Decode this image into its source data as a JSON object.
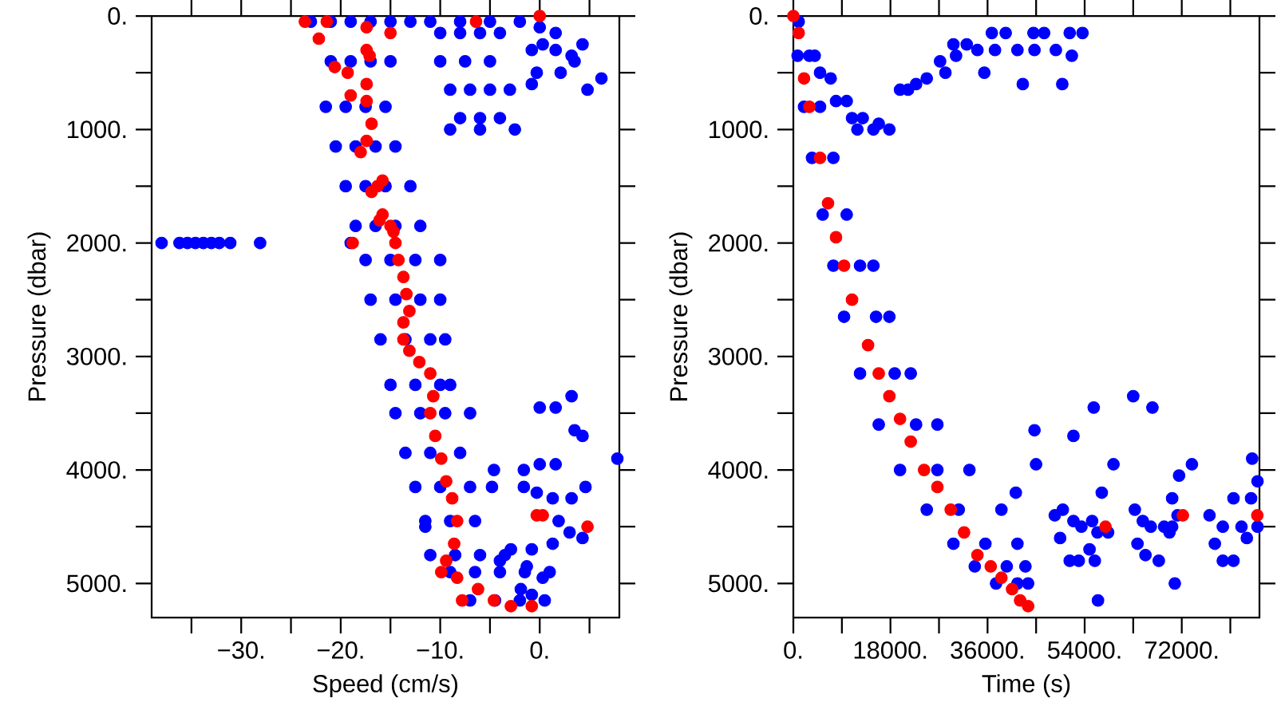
{
  "chart_data": [
    {
      "type": "scatter",
      "xlabel": "Speed (cm/s)",
      "ylabel": "Pressure (dbar)",
      "marker": "circle",
      "xlim": [
        -39,
        8
      ],
      "ylim": [
        5300,
        0
      ],
      "xticks": [
        {
          "value": -35,
          "label": null
        },
        {
          "value": -30,
          "label": "−30."
        },
        {
          "value": -25,
          "label": null
        },
        {
          "value": -20,
          "label": "−20."
        },
        {
          "value": -15,
          "label": null
        },
        {
          "value": -10,
          "label": "−10."
        },
        {
          "value": -5,
          "label": null
        },
        {
          "value": 0,
          "label": "0."
        },
        {
          "value": 5,
          "label": null
        }
      ],
      "yticks": [
        {
          "value": 0,
          "label": "0."
        },
        {
          "value": 500,
          "label": null
        },
        {
          "value": 1000,
          "label": "1000."
        },
        {
          "value": 1500,
          "label": null
        },
        {
          "value": 2000,
          "label": "2000."
        },
        {
          "value": 2500,
          "label": null
        },
        {
          "value": 3000,
          "label": "3000."
        },
        {
          "value": 3500,
          "label": null
        },
        {
          "value": 4000,
          "label": "4000."
        },
        {
          "value": 4500,
          "label": null
        },
        {
          "value": 5000,
          "label": "5000."
        }
      ],
      "series": [
        {
          "color": "#0000ff",
          "x": [
            -23,
            -21,
            -19,
            -17,
            -15,
            -21,
            -19,
            -17,
            -15,
            -21.5,
            -19.5,
            -17.5,
            -15.5,
            -20.5,
            -18.5,
            -16.5,
            -14.5,
            -19.5,
            -17.5,
            -15.5,
            -13,
            -18.5,
            -16.5,
            -14.5,
            -12,
            -17.5,
            -15,
            -12.5,
            -10,
            -17,
            -14.5,
            -12,
            -10,
            -16,
            -13.5,
            -11,
            -9.5,
            -15,
            -12.5,
            -10,
            -9,
            -14.5,
            -12,
            -9.5,
            -7,
            -13.5,
            -11,
            -8,
            -12.5,
            -10,
            -7,
            -11.5,
            -9,
            -6.5,
            -11,
            -8.5,
            -6,
            -3.5,
            -9,
            -6.5,
            -4,
            -1.5,
            1,
            -7,
            -4.5,
            -2,
            0.5,
            -10,
            -8,
            -6,
            -4,
            -10,
            -7.5,
            -5,
            -9,
            -7,
            -5,
            -3,
            -8,
            -6,
            -4,
            -9,
            -6,
            -2.5,
            -13,
            -11,
            -8,
            -5,
            -2,
            0,
            1.6,
            0.3,
            1.6,
            -0.8,
            3.2,
            4.3,
            3.5,
            2.1,
            -0.3,
            -0.8,
            6.2,
            4.8,
            -38,
            -36.2,
            -35.4,
            -34.6,
            -33.8,
            -33,
            -32.2,
            -31.1,
            -28.1,
            -19,
            0,
            1.6,
            3.2,
            3.5,
            4.3,
            7.8,
            -4.6,
            -1.6,
            0,
            1.6,
            -4.8,
            -1.6,
            4.6,
            3.2,
            1.3,
            1.9,
            3,
            4.3,
            1.3,
            -0.8,
            -2.9,
            -4,
            -1.3,
            0.3,
            -1.9,
            -0.8,
            -11.5,
            -0.3
          ],
          "values": [
            50,
            50,
            50,
            50,
            50,
            400,
            400,
            400,
            400,
            800,
            800,
            800,
            800,
            1150,
            1150,
            1150,
            1150,
            1500,
            1500,
            1500,
            1500,
            1850,
            1850,
            1850,
            1850,
            2150,
            2150,
            2150,
            2150,
            2500,
            2500,
            2500,
            2500,
            2850,
            2850,
            2850,
            2850,
            3250,
            3250,
            3250,
            3250,
            3500,
            3500,
            3500,
            3500,
            3850,
            3850,
            3850,
            4150,
            4150,
            4150,
            4450,
            4450,
            4450,
            4750,
            4750,
            4750,
            4750,
            4900,
            4900,
            4900,
            4900,
            4900,
            5150,
            5150,
            5150,
            5150,
            150,
            150,
            150,
            150,
            400,
            400,
            400,
            650,
            650,
            650,
            650,
            900,
            900,
            900,
            1000,
            1000,
            1000,
            50,
            50,
            50,
            50,
            50,
            100,
            150,
            250,
            300,
            300,
            350,
            250,
            400,
            500,
            500,
            600,
            550,
            650,
            2000,
            2000,
            2000,
            2000,
            2000,
            2000,
            2000,
            2000,
            2000,
            2000,
            3450,
            3450,
            3350,
            3650,
            3700,
            3900,
            4000,
            4000,
            3950,
            3950,
            4150,
            4150,
            4150,
            4250,
            4250,
            4450,
            4550,
            4600,
            4650,
            4700,
            4700,
            4800,
            4850,
            4950,
            5050,
            5100,
            4500,
            4200
          ]
        },
        {
          "color": "#ff0000",
          "x": [
            -23.6,
            -21.4,
            -17.4,
            -15,
            -22.2,
            -20.6,
            -17.4,
            -17.1,
            -19.3,
            -17.4,
            -19,
            -17.4,
            -16.9,
            -17.4,
            -18,
            -15.8,
            -16.3,
            -16.9,
            -15.8,
            -16.1,
            -15,
            -14.7,
            -14.5,
            -14.2,
            -13.7,
            -13.4,
            -13.1,
            -13.7,
            -13.7,
            -13.1,
            -12.1,
            -11,
            -10.7,
            -11,
            -10.5,
            -9.9,
            -9.4,
            -8.8,
            -8.3,
            -8.6,
            -9.4,
            -9.9,
            -8.3,
            -6.2,
            -4.6,
            -2.9,
            -7.8,
            -0.8,
            0.3,
            -0.3,
            4.8,
            -18.8,
            -6.4,
            0
          ],
          "values": [
            50,
            50,
            100,
            150,
            200,
            450,
            300,
            350,
            500,
            600,
            700,
            750,
            950,
            1100,
            1200,
            1450,
            1500,
            1550,
            1750,
            1800,
            1850,
            1900,
            2000,
            2150,
            2300,
            2450,
            2600,
            2700,
            2850,
            2950,
            3050,
            3150,
            3350,
            3500,
            3700,
            3900,
            4100,
            4250,
            4450,
            4650,
            4800,
            4900,
            4950,
            5050,
            5150,
            5200,
            5150,
            5200,
            4400,
            4400,
            4500,
            2000,
            50,
            0
          ]
        }
      ]
    },
    {
      "type": "scatter",
      "xlabel": "Time (s)",
      "ylabel": "Pressure (dbar)",
      "marker": "circle",
      "xlim": [
        0,
        86400
      ],
      "ylim": [
        5300,
        0
      ],
      "xticks": [
        {
          "value": 0,
          "label": "0."
        },
        {
          "value": 9000,
          "label": null
        },
        {
          "value": 18000,
          "label": "18000."
        },
        {
          "value": 27000,
          "label": null
        },
        {
          "value": 36000,
          "label": "36000."
        },
        {
          "value": 45000,
          "label": null
        },
        {
          "value": 54000,
          "label": "54000."
        },
        {
          "value": 63000,
          "label": null
        },
        {
          "value": 72000,
          "label": "72000."
        },
        {
          "value": 81000,
          "label": null
        }
      ],
      "yticks": [
        {
          "value": 0,
          "label": "0."
        },
        {
          "value": 500,
          "label": null
        },
        {
          "value": 1000,
          "label": "1000."
        },
        {
          "value": 1500,
          "label": null
        },
        {
          "value": 2000,
          "label": "2000."
        },
        {
          "value": 2500,
          "label": null
        },
        {
          "value": 3000,
          "label": "3000."
        },
        {
          "value": 3500,
          "label": null
        },
        {
          "value": 4000,
          "label": "4000."
        },
        {
          "value": 4500,
          "label": null
        },
        {
          "value": 5000,
          "label": "5000."
        }
      ],
      "series": [
        {
          "color": "#0000ff",
          "x": [
            790,
            2970,
            1980,
            4950,
            3460,
            7420,
            5440,
            9890,
            7420,
            12360,
            14840,
            9400,
            15330,
            17800,
            12360,
            18790,
            21760,
            15830,
            22750,
            26700,
            19780,
            26700,
            32640,
            24730,
            30660,
            38570,
            29670,
            35600,
            41540,
            33630,
            39560,
            43020,
            37580,
            41540,
            43520,
            990,
            3960,
            6920,
            9890,
            12860,
            15830,
            11870,
            14840,
            17800,
            4950,
            7910,
            10880,
            19780,
            21260,
            22750,
            24730,
            27200,
            28190,
            29670,
            30160,
            32140,
            34120,
            35400,
            36790,
            37380,
            39360,
            41540,
            42530,
            44510,
            44700,
            46490,
            48660,
            49850,
            51230,
            51620,
            53600,
            44700,
            44990,
            41240,
            51920,
            55680,
            57170,
            59340,
            63000,
            66560,
            70220,
            71500,
            73880,
            70710,
            56470,
            48460,
            49950,
            49450,
            51230,
            52910,
            53400,
            55380,
            56370,
            55880,
            58350,
            51920,
            54900,
            63300,
            64780,
            63790,
            66260,
            65270,
            67740,
            68730,
            70220,
            71210,
            69720,
            77140,
            78130,
            79610,
            79610,
            81590,
            81590,
            83070,
            84060,
            84850,
            85050,
            86040,
            86040
          ],
          "values": [
            350,
            350,
            800,
            800,
            1250,
            1250,
            1750,
            1750,
            2200,
            2200,
            2200,
            2650,
            2650,
            2650,
            3150,
            3150,
            3150,
            3600,
            3600,
            3600,
            4000,
            4000,
            4000,
            4350,
            4350,
            4350,
            4650,
            4650,
            4650,
            4850,
            4850,
            4850,
            5000,
            5000,
            5000,
            50,
            350,
            550,
            750,
            900,
            950,
            1000,
            1000,
            1000,
            500,
            750,
            900,
            650,
            650,
            600,
            550,
            400,
            500,
            250,
            350,
            250,
            300,
            500,
            150,
            300,
            150,
            300,
            600,
            150,
            300,
            150,
            300,
            600,
            150,
            350,
            150,
            3650,
            3950,
            4200,
            3700,
            3450,
            4200,
            3950,
            3350,
            3450,
            4250,
            4050,
            3950,
            5000,
            5150,
            4400,
            4350,
            4600,
            4800,
            4800,
            4500,
            4450,
            4550,
            4800,
            4550,
            4450,
            4700,
            4350,
            4450,
            4650,
            4500,
            4750,
            4800,
            4500,
            4500,
            4400,
            4550,
            4400,
            4650,
            4500,
            4800,
            4800,
            4250,
            4500,
            4600,
            4250,
            3900,
            4100,
            4500
          ]
        },
        {
          "color": "#ff0000",
          "x": [
            0,
            990,
            1980,
            2970,
            4950,
            6430,
            7910,
            9400,
            10880,
            13850,
            15830,
            17800,
            19780,
            21760,
            24230,
            26700,
            29170,
            31650,
            34120,
            36590,
            38570,
            40550,
            42030,
            43520,
            57860,
            72200,
            86000
          ],
          "values": [
            0,
            150,
            550,
            800,
            1250,
            1650,
            1950,
            2200,
            2500,
            2900,
            3150,
            3350,
            3550,
            3750,
            4000,
            4150,
            4350,
            4550,
            4750,
            4850,
            4950,
            5050,
            5150,
            5200,
            4500,
            4400,
            4400
          ]
        }
      ]
    }
  ]
}
